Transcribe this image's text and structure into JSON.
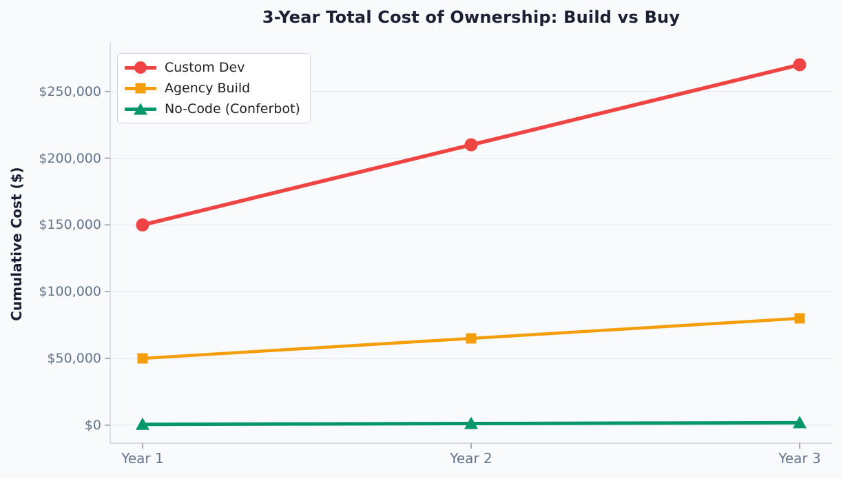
{
  "figure": {
    "background": "#f8fafc",
    "title_color": "#1c2033",
    "tick_label_color": "#64748b",
    "tick_color": "#969eaa",
    "grid_color": "#e7eaef",
    "spine_color": "#d0d4da",
    "legend_text_color": "#212121",
    "legend_border_color": "#d0d5dc"
  },
  "chart_data": {
    "type": "line",
    "title": "3-Year Total Cost of Ownership: Build vs Buy",
    "xlabel": "",
    "ylabel": "Cumulative Cost ($)",
    "categories": [
      "Year 1",
      "Year 2",
      "Year 3"
    ],
    "series": [
      {
        "name": "Custom Dev",
        "color": "#ef4444",
        "marker": "circle",
        "line_width": 5.5,
        "values": [
          150000,
          210000,
          270000
        ]
      },
      {
        "name": "Agency Build",
        "color": "#f59e0b",
        "marker": "square",
        "line_width": 4.5,
        "values": [
          50000,
          65000,
          80000
        ]
      },
      {
        "name": "No-Code (Conferbot)",
        "color": "#059669",
        "marker": "triangle",
        "line_width": 5,
        "values": [
          600,
          1200,
          1800
        ]
      }
    ],
    "y_ticks": [
      {
        "value": 0,
        "label": "$0"
      },
      {
        "value": 50000,
        "label": "$50,000"
      },
      {
        "value": 100000,
        "label": "$100,000"
      },
      {
        "value": 150000,
        "label": "$150,000"
      },
      {
        "value": 200000,
        "label": "$200,000"
      },
      {
        "value": 250000,
        "label": "$250,000"
      }
    ],
    "ylim": [
      -13500,
      286500
    ],
    "grid": "horizontal",
    "legend_position": "upper-left"
  }
}
